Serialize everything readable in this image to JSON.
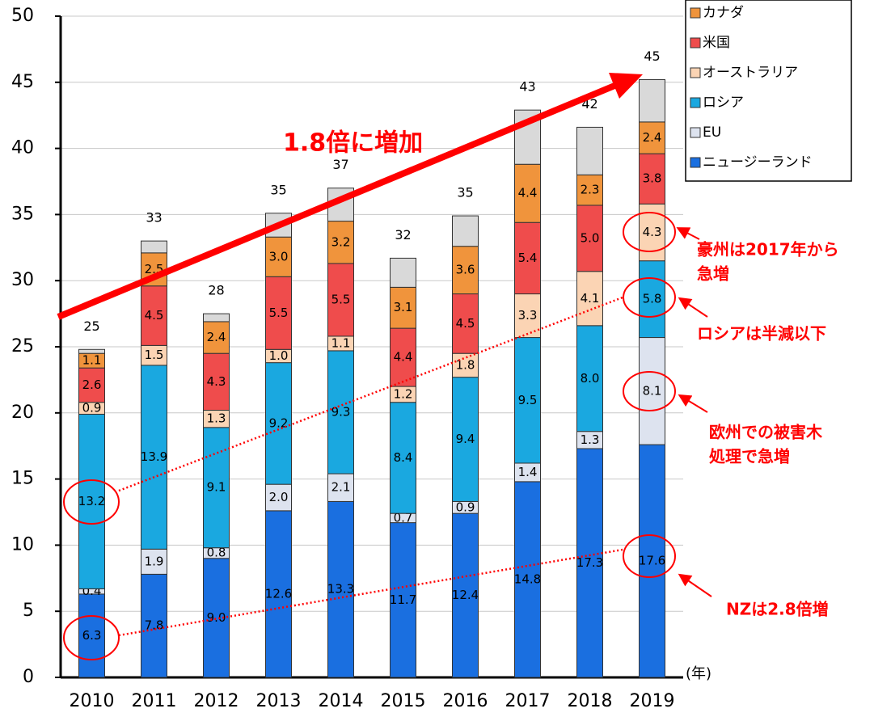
{
  "chart_data": {
    "type": "stacked_bar",
    "categories": [
      "2010",
      "2011",
      "2012",
      "2013",
      "2014",
      "2015",
      "2016",
      "2017",
      "2018",
      "2019"
    ],
    "x_label": "(年)",
    "series": [
      {
        "name": "ニュージーランド",
        "color": "#1a6fe0",
        "values": [
          6.3,
          7.8,
          9.0,
          12.6,
          13.3,
          11.7,
          12.4,
          14.8,
          17.3,
          17.6
        ],
        "value_labels": [
          "6.3",
          "7.8",
          "9.0",
          "12.6",
          "13.3",
          "11.7",
          "12.4",
          "14.8",
          "17.3",
          "17.6"
        ]
      },
      {
        "name": "EU",
        "color": "#dde3ef",
        "values": [
          0.4,
          1.9,
          0.8,
          2.0,
          2.1,
          0.7,
          0.9,
          1.4,
          1.3,
          8.1
        ],
        "value_labels": [
          "0.4",
          "1.9",
          "0.8",
          "2.0",
          "2.1",
          "0.7",
          "0.9",
          "1.4",
          "1.3",
          "8.1"
        ]
      },
      {
        "name": "ロシア",
        "color": "#1aa8e0",
        "values": [
          13.2,
          13.9,
          9.1,
          9.2,
          9.3,
          8.4,
          9.4,
          9.5,
          8.0,
          5.8
        ],
        "value_labels": [
          "13.2",
          "13.9",
          "9.1",
          "9.2",
          "9.3",
          "8.4",
          "9.4",
          "9.5",
          "8.0",
          "5.8"
        ]
      },
      {
        "name": "オーストラリア",
        "color": "#fbd4b4",
        "values": [
          0.9,
          1.5,
          1.3,
          1.0,
          1.1,
          1.2,
          1.8,
          3.3,
          4.1,
          4.3
        ],
        "value_labels": [
          "0.9",
          "1.5",
          "1.3",
          "1.0",
          "1.1",
          "1.2",
          "1.8",
          "3.3",
          "4.1",
          "4.3"
        ]
      },
      {
        "name": "米国",
        "color": "#ef4c4c",
        "values": [
          2.6,
          4.5,
          4.3,
          5.5,
          5.5,
          4.4,
          4.5,
          5.4,
          5.0,
          3.8
        ],
        "value_labels": [
          "2.6",
          "4.5",
          "4.3",
          "5.5",
          "5.5",
          "4.4",
          "4.5",
          "5.4",
          "5.0",
          "3.8"
        ]
      },
      {
        "name": "カナダ",
        "color": "#f0943c",
        "values": [
          1.1,
          2.5,
          2.4,
          3.0,
          3.2,
          3.1,
          3.6,
          4.4,
          2.3,
          2.4
        ],
        "value_labels": [
          "1.1",
          "2.5",
          "2.4",
          "3.0",
          "3.2",
          "3.1",
          "3.6",
          "4.4",
          "2.3",
          "2.4"
        ]
      },
      {
        "color": "#d9d9d9",
        "values": [
          0.3,
          0.9,
          0.6,
          1.8,
          2.5,
          2.2,
          2.3,
          4.1,
          3.6,
          3.2
        ]
      }
    ],
    "totals": [
      25,
      33,
      28,
      35,
      37,
      32,
      35,
      43,
      42,
      45
    ],
    "ylim": [
      0,
      50
    ],
    "yticks": [
      0,
      5,
      10,
      15,
      20,
      25,
      30,
      35,
      40,
      45,
      50
    ],
    "grid": true,
    "legend": "top-right",
    "annotations": [
      [
        "1.8倍に増加"
      ],
      [
        "豪州は2017年から",
        "急増"
      ],
      [
        "ロシアは半減以下"
      ],
      [
        "欧州での被害木",
        "処理で急増"
      ],
      [
        "NZは2.8倍増"
      ]
    ]
  }
}
